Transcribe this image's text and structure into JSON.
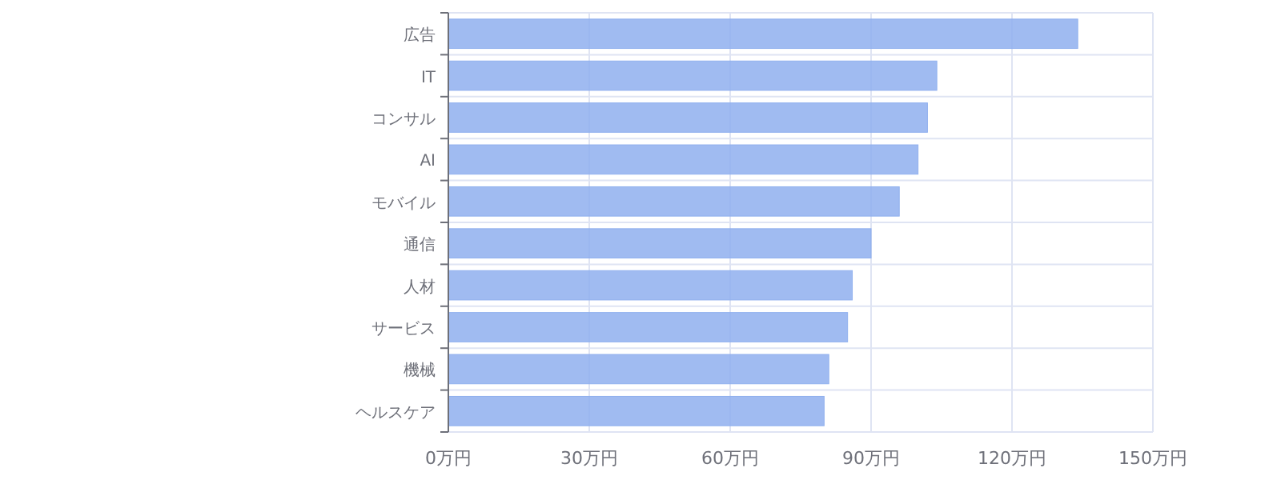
{
  "chart_data": {
    "type": "bar",
    "orientation": "horizontal",
    "categories": [
      "広告",
      "IT",
      "コンサル",
      "AI",
      "モバイル",
      "通信",
      "人材",
      "サービス",
      "機械",
      "ヘルスケア"
    ],
    "values": [
      134,
      104,
      102,
      100,
      96,
      90,
      86,
      85,
      81,
      80
    ],
    "color": "#8fafee",
    "xlim": [
      0,
      150
    ],
    "xticks": [
      {
        "value": 0,
        "label": "0万円"
      },
      {
        "value": 30,
        "label": "30万円"
      },
      {
        "value": 60,
        "label": "60万円"
      },
      {
        "value": 90,
        "label": "90万円"
      },
      {
        "value": 120,
        "label": "120万円"
      },
      {
        "value": 150,
        "label": "150万円"
      }
    ],
    "grid": true
  }
}
